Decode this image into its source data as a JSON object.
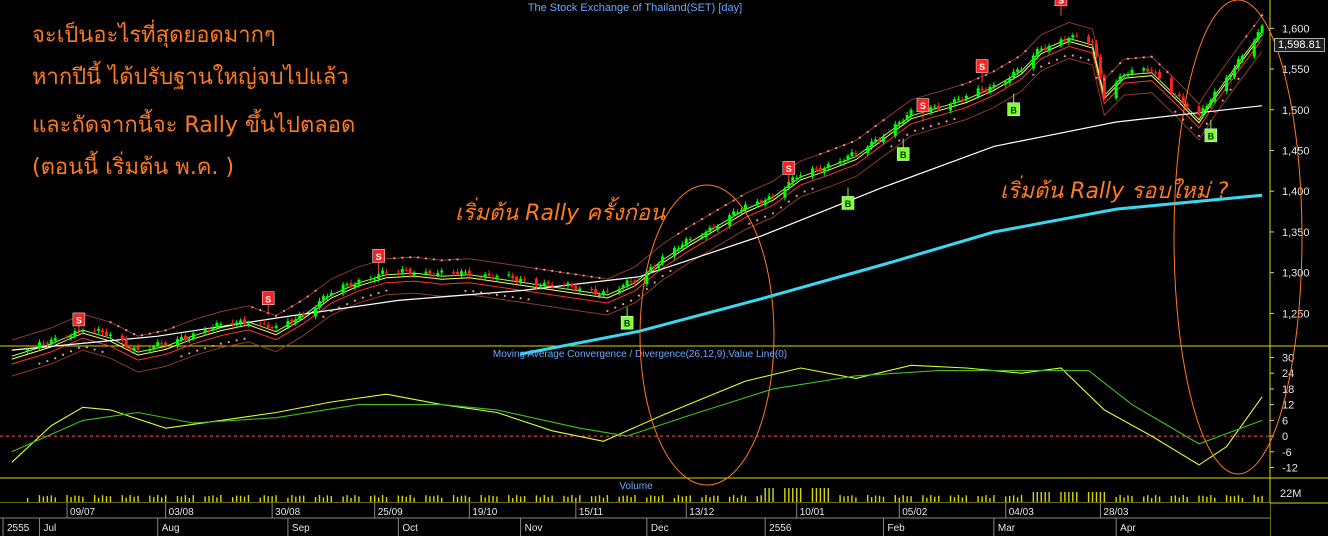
{
  "chart_title": "The Stock Exchange of Thailand(SET) [day]",
  "annotations": {
    "line1": "จะเป็นอะไรที่สุดยอดมากๆ",
    "line2": "หากปีนี้ ได้ปรับฐานใหญ่จบไปแล้ว",
    "line3": "และถัดจากนี้จะ Rally ขึ้นไปตลอด",
    "line4": "(ตอนนี้ เริ่มต้น พ.ค. )",
    "rally_prev": "เริ่มต้น Rally ครั้งก่อน",
    "rally_new": "เริ่มต้น Rally รอบใหม่ ?"
  },
  "last_price": "1,598.81",
  "colors": {
    "up_candle": "#00ff00",
    "down_candle": "#ff2020",
    "ma_long": "#3ad8f0",
    "ma_mid": "#ffffff",
    "annotation": "#ff7a1f",
    "signal_sell": "#ff2020",
    "signal_buy": "#7fff3a",
    "axis_text": "#e6e6e6",
    "panel_title": "#6aa8ff"
  },
  "chart_data": [
    {
      "type": "candlestick",
      "title": "The Stock Exchange of Thailand(SET) [day]",
      "y_ticks": [
        "1,600",
        "1,550",
        "1,500",
        "1,450",
        "1,400",
        "1,350",
        "1,300",
        "1,250"
      ],
      "ylim": [
        1210,
        1620
      ],
      "x_tick_dates": [
        "09/07",
        "03/08",
        "30/08",
        "25/09",
        "19/10",
        "15/11",
        "13/12",
        "10/01",
        "05/02",
        "04/03",
        "28/03"
      ],
      "x_tick_months": [
        "2555",
        "Jul",
        "Aug",
        "Sep",
        "Oct",
        "Nov",
        "Dec",
        "2556",
        "Feb",
        "Mar",
        "Apr"
      ],
      "close_path": [
        {
          "d": "2012-06-25",
          "v": 1200
        },
        {
          "d": "2012-07-05",
          "v": 1215
        },
        {
          "d": "2012-07-13",
          "v": 1232
        },
        {
          "d": "2012-07-20",
          "v": 1222
        },
        {
          "d": "2012-07-27",
          "v": 1205
        },
        {
          "d": "2012-08-03",
          "v": 1212
        },
        {
          "d": "2012-08-10",
          "v": 1225
        },
        {
          "d": "2012-08-17",
          "v": 1235
        },
        {
          "d": "2012-08-24",
          "v": 1242
        },
        {
          "d": "2012-08-31",
          "v": 1230
        },
        {
          "d": "2012-09-07",
          "v": 1250
        },
        {
          "d": "2012-09-14",
          "v": 1275
        },
        {
          "d": "2012-09-21",
          "v": 1290
        },
        {
          "d": "2012-09-28",
          "v": 1300
        },
        {
          "d": "2012-10-05",
          "v": 1302
        },
        {
          "d": "2012-10-12",
          "v": 1298
        },
        {
          "d": "2012-10-19",
          "v": 1300
        },
        {
          "d": "2012-10-26",
          "v": 1295
        },
        {
          "d": "2012-11-02",
          "v": 1290
        },
        {
          "d": "2012-11-09",
          "v": 1285
        },
        {
          "d": "2012-11-16",
          "v": 1280
        },
        {
          "d": "2012-11-23",
          "v": 1275
        },
        {
          "d": "2012-11-30",
          "v": 1290
        },
        {
          "d": "2012-12-07",
          "v": 1318
        },
        {
          "d": "2012-12-14",
          "v": 1340
        },
        {
          "d": "2012-12-21",
          "v": 1360
        },
        {
          "d": "2012-12-28",
          "v": 1380
        },
        {
          "d": "2013-01-04",
          "v": 1395
        },
        {
          "d": "2013-01-11",
          "v": 1420
        },
        {
          "d": "2013-01-18",
          "v": 1432
        },
        {
          "d": "2013-01-25",
          "v": 1445
        },
        {
          "d": "2013-02-01",
          "v": 1470
        },
        {
          "d": "2013-02-08",
          "v": 1495
        },
        {
          "d": "2013-02-15",
          "v": 1505
        },
        {
          "d": "2013-02-22",
          "v": 1515
        },
        {
          "d": "2013-03-01",
          "v": 1530
        },
        {
          "d": "2013-03-08",
          "v": 1550
        },
        {
          "d": "2013-03-13",
          "v": 1575
        },
        {
          "d": "2013-03-20",
          "v": 1590
        },
        {
          "d": "2013-03-26",
          "v": 1582
        },
        {
          "d": "2013-03-29",
          "v": 1520
        },
        {
          "d": "2013-04-03",
          "v": 1545
        },
        {
          "d": "2013-04-10",
          "v": 1548
        },
        {
          "d": "2013-04-17",
          "v": 1515
        },
        {
          "d": "2013-04-22",
          "v": 1490
        },
        {
          "d": "2013-04-26",
          "v": 1520
        },
        {
          "d": "2013-05-02",
          "v": 1560
        },
        {
          "d": "2013-05-08",
          "v": 1598.81
        }
      ],
      "series": [
        {
          "name": "",
          "style": "ma_long",
          "values": [
            {
              "d": "2012-11-01",
              "v": 1200
            },
            {
              "d": "2012-12-01",
              "v": 1228
            },
            {
              "d": "2013-01-01",
              "v": 1268
            },
            {
              "d": "2013-02-01",
              "v": 1310
            },
            {
              "d": "2013-03-01",
              "v": 1350
            },
            {
              "d": "2013-04-01",
              "v": 1378
            },
            {
              "d": "2013-05-08",
              "v": 1395
            }
          ]
        },
        {
          "name": "",
          "style": "ma_mid",
          "values": [
            {
              "d": "2012-06-25",
              "v": 1205
            },
            {
              "d": "2012-08-01",
              "v": 1222
            },
            {
              "d": "2012-09-01",
              "v": 1245
            },
            {
              "d": "2012-10-01",
              "v": 1266
            },
            {
              "d": "2012-11-01",
              "v": 1278
            },
            {
              "d": "2012-12-01",
              "v": 1295
            },
            {
              "d": "2013-01-01",
              "v": 1345
            },
            {
              "d": "2013-02-01",
              "v": 1405
            },
            {
              "d": "2013-03-01",
              "v": 1455
            },
            {
              "d": "2013-04-01",
              "v": 1485
            },
            {
              "d": "2013-05-08",
              "v": 1505
            }
          ]
        }
      ],
      "signals": [
        {
          "type": "S",
          "d": "2012-07-12",
          "v": 1242
        },
        {
          "type": "S",
          "d": "2012-08-29",
          "v": 1268
        },
        {
          "type": "S",
          "d": "2012-09-26",
          "v": 1320
        },
        {
          "type": "B",
          "d": "2012-11-28",
          "v": 1238
        },
        {
          "type": "S",
          "d": "2013-01-08",
          "v": 1428
        },
        {
          "type": "B",
          "d": "2013-01-23",
          "v": 1385
        },
        {
          "type": "B",
          "d": "2013-02-06",
          "v": 1445
        },
        {
          "type": "S",
          "d": "2013-02-11",
          "v": 1505
        },
        {
          "type": "S",
          "d": "2013-02-26",
          "v": 1553
        },
        {
          "type": "B",
          "d": "2013-03-06",
          "v": 1500
        },
        {
          "type": "S",
          "d": "2013-03-18",
          "v": 1635
        },
        {
          "type": "B",
          "d": "2013-04-25",
          "v": 1468
        }
      ]
    },
    {
      "type": "line",
      "title": "Moving Average Convergence / Divergence(26,12,9),Value Line(0)",
      "y_ticks": [
        "30",
        "24",
        "18",
        "12",
        "6",
        "0",
        "-6",
        "-12"
      ],
      "ylim": [
        -16,
        34
      ],
      "series": [
        {
          "name": "",
          "style": "macd",
          "values": [
            {
              "d": "2012-06-25",
              "v": -10
            },
            {
              "d": "2012-07-05",
              "v": 4
            },
            {
              "d": "2012-07-13",
              "v": 11
            },
            {
              "d": "2012-07-20",
              "v": 10
            },
            {
              "d": "2012-08-03",
              "v": 3
            },
            {
              "d": "2012-08-17",
              "v": 6
            },
            {
              "d": "2012-08-31",
              "v": 9
            },
            {
              "d": "2012-09-14",
              "v": 13
            },
            {
              "d": "2012-09-28",
              "v": 16
            },
            {
              "d": "2012-10-12",
              "v": 12
            },
            {
              "d": "2012-10-26",
              "v": 9
            },
            {
              "d": "2012-11-09",
              "v": 2
            },
            {
              "d": "2012-11-22",
              "v": -2
            },
            {
              "d": "2012-12-07",
              "v": 8
            },
            {
              "d": "2012-12-28",
              "v": 21
            },
            {
              "d": "2013-01-11",
              "v": 26
            },
            {
              "d": "2013-01-25",
              "v": 22
            },
            {
              "d": "2013-02-08",
              "v": 27
            },
            {
              "d": "2013-02-22",
              "v": 26
            },
            {
              "d": "2013-03-08",
              "v": 24
            },
            {
              "d": "2013-03-18",
              "v": 26
            },
            {
              "d": "2013-03-29",
              "v": 10
            },
            {
              "d": "2013-04-10",
              "v": 0
            },
            {
              "d": "2013-04-22",
              "v": -11
            },
            {
              "d": "2013-04-29",
              "v": -4
            },
            {
              "d": "2013-05-08",
              "v": 15
            }
          ]
        },
        {
          "name": "",
          "style": "signal",
          "values": [
            {
              "d": "2012-06-25",
              "v": -6
            },
            {
              "d": "2012-07-13",
              "v": 6
            },
            {
              "d": "2012-07-27",
              "v": 9
            },
            {
              "d": "2012-08-10",
              "v": 5
            },
            {
              "d": "2012-08-31",
              "v": 7
            },
            {
              "d": "2012-09-21",
              "v": 12
            },
            {
              "d": "2012-10-12",
              "v": 12
            },
            {
              "d": "2012-10-26",
              "v": 10
            },
            {
              "d": "2012-11-16",
              "v": 3
            },
            {
              "d": "2012-11-28",
              "v": 0
            },
            {
              "d": "2012-12-14",
              "v": 8
            },
            {
              "d": "2013-01-04",
              "v": 18
            },
            {
              "d": "2013-01-25",
              "v": 23
            },
            {
              "d": "2013-02-15",
              "v": 25
            },
            {
              "d": "2013-03-08",
              "v": 25
            },
            {
              "d": "2013-03-25",
              "v": 25
            },
            {
              "d": "2013-04-05",
              "v": 12
            },
            {
              "d": "2013-04-22",
              "v": -3
            },
            {
              "d": "2013-05-08",
              "v": 6
            }
          ]
        }
      ]
    },
    {
      "type": "bar",
      "title": "Volume",
      "y_ticks": [
        "22M"
      ]
    }
  ]
}
